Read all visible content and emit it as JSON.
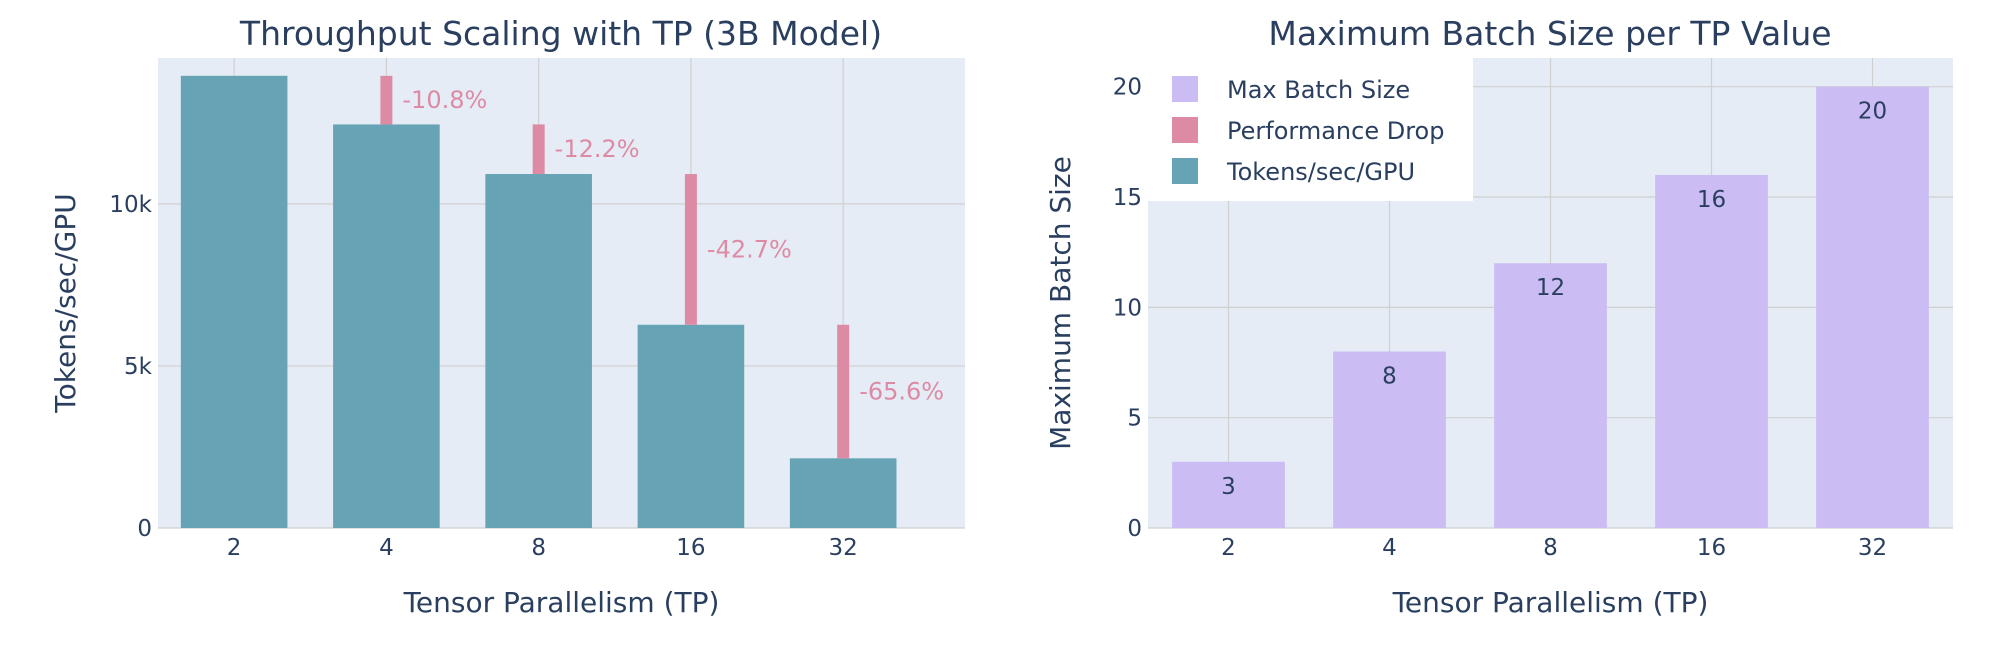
{
  "chart_data": [
    {
      "type": "bar",
      "title": "Throughput Scaling with TP (3B Model)",
      "xlabel": "Tensor Parallelism (TP)",
      "ylabel": "Tokens/sec/GPU",
      "categories": [
        "2",
        "4",
        "8",
        "16",
        "32"
      ],
      "ylim": [
        0,
        14500
      ],
      "yticks": [
        0,
        5000,
        10000
      ],
      "ytick_labels": [
        "0",
        "5k",
        "10k"
      ],
      "grid": true,
      "series": [
        {
          "name": "Tokens/sec/GPU",
          "values": [
            13950,
            12450,
            10920,
            6270,
            2150
          ],
          "color": "#66a3b5"
        },
        {
          "name": "Performance Drop",
          "segments": [
            [
              12450,
              13950
            ],
            [
              10920,
              12450
            ],
            [
              6270,
              10920
            ],
            [
              2150,
              6270
            ]
          ],
          "labels": [
            "-10.8%",
            "-12.2%",
            "-42.7%",
            "-65.6%"
          ],
          "color": "#dd8ba5"
        }
      ]
    },
    {
      "type": "bar",
      "title": "Maximum Batch Size per TP Value",
      "xlabel": "Tensor Parallelism (TP)",
      "ylabel": "Maximum Batch Size",
      "categories": [
        "2",
        "4",
        "8",
        "16",
        "32"
      ],
      "ylim": [
        0,
        21.3
      ],
      "yticks": [
        0,
        5,
        10,
        15,
        20
      ],
      "ytick_labels": [
        "0",
        "5",
        "10",
        "15",
        "20"
      ],
      "grid": true,
      "series": [
        {
          "name": "Max Batch Size",
          "values": [
            3,
            8,
            12,
            16,
            20
          ],
          "labels": [
            "3",
            "8",
            "12",
            "16",
            "20"
          ],
          "color": "#cbbdf4"
        }
      ]
    }
  ],
  "legend": {
    "placement": "top-left of right panel",
    "items": [
      {
        "name": "Max Batch Size",
        "color": "#cbbdf4"
      },
      {
        "name": "Performance Drop",
        "color": "#dd8ba5"
      },
      {
        "name": "Tokens/sec/GPU",
        "color": "#66a3b5"
      }
    ]
  },
  "colors": {
    "plot_bg": "#e5ecf6",
    "grid": "#d0d0d0",
    "text": "#2a3f5f",
    "drop_label": "#dd8ba5"
  }
}
